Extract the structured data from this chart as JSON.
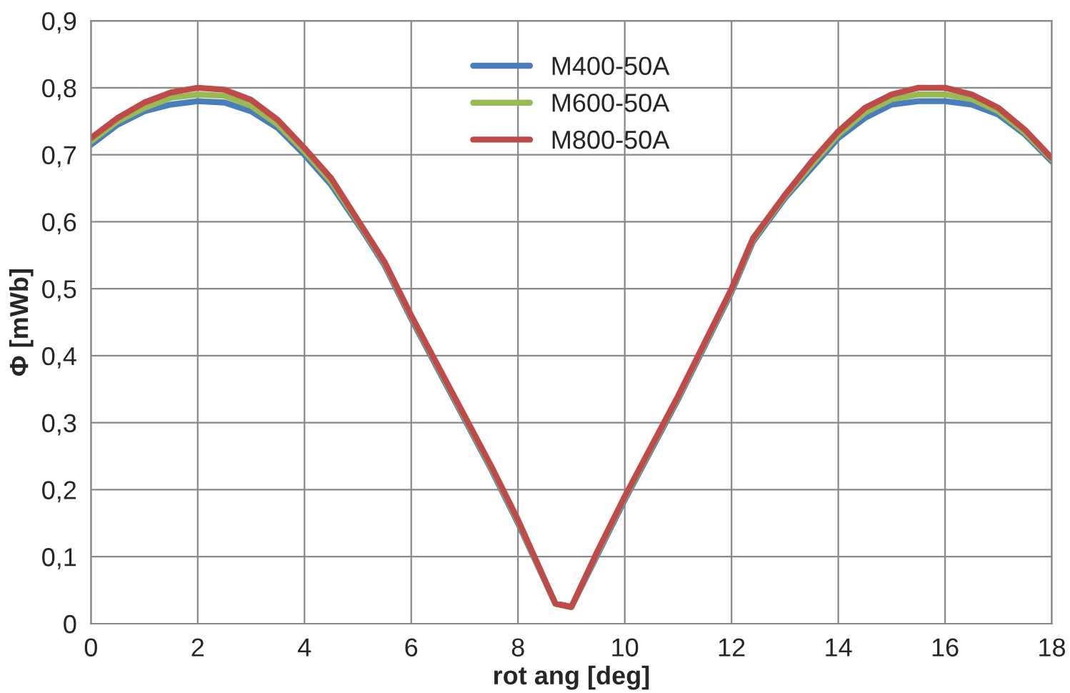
{
  "chart_data": {
    "type": "line",
    "xlabel": "rot ang [deg]",
    "ylabel": "Φ [mWb]",
    "x": [
      0,
      0.5,
      1,
      1.5,
      2,
      2.5,
      3,
      3.5,
      4,
      4.5,
      5.1,
      5.5,
      6,
      6.5,
      7,
      7.5,
      8,
      8.7,
      9,
      9.5,
      10,
      10.5,
      11,
      11.5,
      12,
      12.4,
      13,
      13.5,
      14,
      14.5,
      15,
      15.5,
      16,
      16.5,
      17,
      17.5,
      18
    ],
    "series": [
      {
        "name": "M400-50A",
        "color": "#4a7ebb",
        "values": [
          0.715,
          0.745,
          0.765,
          0.775,
          0.78,
          0.778,
          0.765,
          0.74,
          0.7,
          0.655,
          0.585,
          0.535,
          0.455,
          0.38,
          0.305,
          0.23,
          0.15,
          0.03,
          0.025,
          0.105,
          0.185,
          0.26,
          0.335,
          0.415,
          0.495,
          0.57,
          0.635,
          0.68,
          0.725,
          0.755,
          0.775,
          0.78,
          0.78,
          0.775,
          0.76,
          0.73,
          0.69
        ]
      },
      {
        "name": "M600-50A",
        "color": "#98b954",
        "values": [
          0.72,
          0.75,
          0.77,
          0.785,
          0.79,
          0.788,
          0.773,
          0.745,
          0.705,
          0.66,
          0.588,
          0.538,
          0.458,
          0.383,
          0.308,
          0.233,
          0.153,
          0.03,
          0.025,
          0.108,
          0.188,
          0.263,
          0.338,
          0.418,
          0.498,
          0.573,
          0.638,
          0.685,
          0.73,
          0.763,
          0.783,
          0.79,
          0.79,
          0.783,
          0.765,
          0.733,
          0.693
        ]
      },
      {
        "name": "M800-50A",
        "color": "#be4b48",
        "values": [
          0.725,
          0.755,
          0.778,
          0.793,
          0.8,
          0.797,
          0.782,
          0.752,
          0.71,
          0.665,
          0.59,
          0.54,
          0.46,
          0.385,
          0.31,
          0.235,
          0.155,
          0.03,
          0.025,
          0.11,
          0.19,
          0.265,
          0.34,
          0.42,
          0.5,
          0.575,
          0.64,
          0.69,
          0.735,
          0.77,
          0.79,
          0.8,
          0.8,
          0.79,
          0.77,
          0.737,
          0.695
        ]
      }
    ],
    "xlim": [
      0,
      18
    ],
    "xticks": [
      0,
      2,
      4,
      6,
      8,
      10,
      12,
      14,
      16,
      18
    ],
    "ylim": [
      0,
      0.9
    ],
    "yticks": [
      {
        "value": 0,
        "label": "0"
      },
      {
        "value": 0.1,
        "label": "0,1"
      },
      {
        "value": 0.2,
        "label": "0,2"
      },
      {
        "value": 0.3,
        "label": "0,3"
      },
      {
        "value": 0.4,
        "label": "0,4"
      },
      {
        "value": 0.5,
        "label": "0,5"
      },
      {
        "value": 0.6,
        "label": "0,6"
      },
      {
        "value": 0.7,
        "label": "0,7"
      },
      {
        "value": 0.8,
        "label": "0,8"
      },
      {
        "value": 0.9,
        "label": "0,9"
      }
    ],
    "grid": true,
    "legend": "top",
    "marker": "none",
    "line_style": "solid"
  }
}
